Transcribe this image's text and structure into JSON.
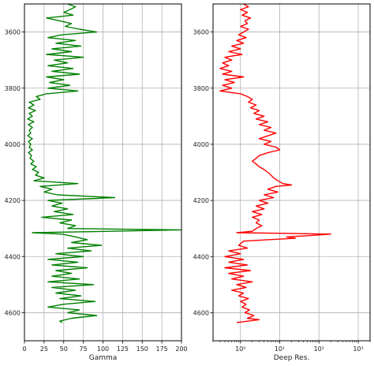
{
  "colors": {
    "gamma": "#008000",
    "deep_res": "#ff0000",
    "grid": "#b0b0b0",
    "axes": "#000000"
  },
  "chart_data": [
    {
      "type": "line",
      "orientation": "vertical-depth",
      "xlabel": "Gamma",
      "ylabel": "",
      "xlim": [
        0,
        200
      ],
      "ylim": [
        4700,
        3500
      ],
      "y_inverted": true,
      "grid": true,
      "xticks": [
        0,
        25,
        50,
        75,
        100,
        125,
        150,
        175,
        200
      ],
      "xtick_labels": [
        "0",
        "25",
        "50",
        "75",
        "100",
        "125",
        "150",
        "175",
        "200"
      ],
      "yticks": [
        3600,
        3800,
        4000,
        4200,
        4400,
        4600
      ],
      "ytick_labels": [
        "3600",
        "3800",
        "4000",
        "4200",
        "4400",
        "4600"
      ],
      "series": [
        {
          "color": "#008000",
          "points": [
            [
              3500,
              55
            ],
            [
              3510,
              65
            ],
            [
              3520,
              58
            ],
            [
              3530,
              50
            ],
            [
              3540,
              62
            ],
            [
              3550,
              28
            ],
            [
              3560,
              45
            ],
            [
              3570,
              60
            ],
            [
              3580,
              52
            ],
            [
              3590,
              70
            ],
            [
              3600,
              92
            ],
            [
              3610,
              48
            ],
            [
              3620,
              30
            ],
            [
              3630,
              65
            ],
            [
              3640,
              40
            ],
            [
              3650,
              72
            ],
            [
              3660,
              35
            ],
            [
              3670,
              60
            ],
            [
              3680,
              28
            ],
            [
              3690,
              75
            ],
            [
              3700,
              38
            ],
            [
              3710,
              55
            ],
            [
              3720,
              30
            ],
            [
              3730,
              62
            ],
            [
              3740,
              35
            ],
            [
              3750,
              70
            ],
            [
              3760,
              28
            ],
            [
              3770,
              50
            ],
            [
              3780,
              32
            ],
            [
              3790,
              58
            ],
            [
              3800,
              30
            ],
            [
              3810,
              68
            ],
            [
              3820,
              28
            ],
            [
              3830,
              15
            ],
            [
              3840,
              20
            ],
            [
              3850,
              6
            ],
            [
              3860,
              12
            ],
            [
              3870,
              5
            ],
            [
              3880,
              14
            ],
            [
              3890,
              6
            ],
            [
              3900,
              10
            ],
            [
              3910,
              4
            ],
            [
              3920,
              12
            ],
            [
              3930,
              5
            ],
            [
              3940,
              10
            ],
            [
              3950,
              6
            ],
            [
              3960,
              8
            ],
            [
              3970,
              4
            ],
            [
              3980,
              10
            ],
            [
              3990,
              5
            ],
            [
              4000,
              8
            ],
            [
              4010,
              6
            ],
            [
              4020,
              10
            ],
            [
              4030,
              5
            ],
            [
              4040,
              9
            ],
            [
              4050,
              7
            ],
            [
              4060,
              12
            ],
            [
              4070,
              8
            ],
            [
              4080,
              15
            ],
            [
              4090,
              10
            ],
            [
              4100,
              18
            ],
            [
              4110,
              14
            ],
            [
              4120,
              25
            ],
            [
              4130,
              12
            ],
            [
              4140,
              68
            ],
            [
              4150,
              20
            ],
            [
              4160,
              35
            ],
            [
              4170,
              25
            ],
            [
              4180,
              42
            ],
            [
              4190,
              115
            ],
            [
              4200,
              30
            ],
            [
              4210,
              48
            ],
            [
              4220,
              35
            ],
            [
              4230,
              55
            ],
            [
              4240,
              38
            ],
            [
              4250,
              62
            ],
            [
              4260,
              22
            ],
            [
              4270,
              60
            ],
            [
              4280,
              45
            ],
            [
              4290,
              65
            ],
            [
              4300,
              55
            ],
            [
              4305,
              200
            ],
            [
              4310,
              110
            ],
            [
              4315,
              10
            ],
            [
              4320,
              48
            ],
            [
              4330,
              65
            ],
            [
              4340,
              80
            ],
            [
              4350,
              60
            ],
            [
              4360,
              98
            ],
            [
              4370,
              55
            ],
            [
              4380,
              85
            ],
            [
              4390,
              40
            ],
            [
              4400,
              75
            ],
            [
              4410,
              30
            ],
            [
              4420,
              68
            ],
            [
              4430,
              35
            ],
            [
              4440,
              80
            ],
            [
              4450,
              40
            ],
            [
              4460,
              60
            ],
            [
              4470,
              35
            ],
            [
              4480,
              70
            ],
            [
              4490,
              30
            ],
            [
              4500,
              88
            ],
            [
              4510,
              35
            ],
            [
              4520,
              65
            ],
            [
              4530,
              40
            ],
            [
              4540,
              72
            ],
            [
              4550,
              45
            ],
            [
              4560,
              90
            ],
            [
              4570,
              50
            ],
            [
              4580,
              30
            ],
            [
              4590,
              70
            ],
            [
              4600,
              55
            ],
            [
              4610,
              92
            ],
            [
              4620,
              60
            ],
            [
              4630,
              45
            ],
            [
              4635,
              48
            ]
          ]
        }
      ]
    },
    {
      "type": "line",
      "orientation": "vertical-depth",
      "xlabel": "Deep Res.",
      "ylabel": "",
      "xlim": [
        0.2,
        2000
      ],
      "x_scale": "log",
      "ylim": [
        4700,
        3500
      ],
      "y_inverted": true,
      "grid": true,
      "xticks": [
        1,
        10,
        100,
        1000
      ],
      "xtick_labels": [
        "10⁰",
        "10¹",
        "10²",
        "10³"
      ],
      "yticks": [
        3600,
        3800,
        4000,
        4200,
        4400,
        4600
      ],
      "ytick_labels": [
        "3600",
        "3800",
        "4000",
        "4200",
        "4400",
        "4600"
      ],
      "series": [
        {
          "color": "#ff0000",
          "points": [
            [
              3500,
              1.2
            ],
            [
              3510,
              1.6
            ],
            [
              3520,
              1.0
            ],
            [
              3530,
              1.5
            ],
            [
              3540,
              1.1
            ],
            [
              3550,
              1.8
            ],
            [
              3560,
              1.3
            ],
            [
              3570,
              1.5
            ],
            [
              3580,
              1.0
            ],
            [
              3590,
              1.6
            ],
            [
              3600,
              1.2
            ],
            [
              3610,
              0.9
            ],
            [
              3620,
              1.4
            ],
            [
              3630,
              0.8
            ],
            [
              3640,
              1.2
            ],
            [
              3650,
              0.6
            ],
            [
              3660,
              1.0
            ],
            [
              3670,
              0.5
            ],
            [
              3680,
              1.1
            ],
            [
              3690,
              0.4
            ],
            [
              3700,
              0.6
            ],
            [
              3710,
              0.35
            ],
            [
              3720,
              0.5
            ],
            [
              3730,
              0.3
            ],
            [
              3740,
              0.6
            ],
            [
              3750,
              0.35
            ],
            [
              3760,
              1.2
            ],
            [
              3770,
              0.4
            ],
            [
              3780,
              0.7
            ],
            [
              3790,
              0.35
            ],
            [
              3800,
              0.6
            ],
            [
              3810,
              0.3
            ],
            [
              3820,
              1.0
            ],
            [
              3830,
              1.5
            ],
            [
              3840,
              2.0
            ],
            [
              3850,
              1.6
            ],
            [
              3860,
              2.5
            ],
            [
              3870,
              1.8
            ],
            [
              3880,
              3.0
            ],
            [
              3890,
              2.2
            ],
            [
              3900,
              4.0
            ],
            [
              3910,
              2.5
            ],
            [
              3920,
              5.0
            ],
            [
              3930,
              3.0
            ],
            [
              3940,
              6.0
            ],
            [
              3950,
              4.0
            ],
            [
              3960,
              8.0
            ],
            [
              3970,
              5.0
            ],
            [
              3980,
              3.0
            ],
            [
              3990,
              6.0
            ],
            [
              4000,
              4.0
            ],
            [
              4010,
              8.0
            ],
            [
              4020,
              10.0
            ],
            [
              4030,
              5.0
            ],
            [
              4040,
              3.0
            ],
            [
              4050,
              2.5
            ],
            [
              4060,
              2.0
            ],
            [
              4070,
              2.5
            ],
            [
              4080,
              3.0
            ],
            [
              4090,
              4.0
            ],
            [
              4100,
              5.0
            ],
            [
              4110,
              6.0
            ],
            [
              4120,
              7.0
            ],
            [
              4130,
              9.0
            ],
            [
              4140,
              12.0
            ],
            [
              4145,
              20.0
            ],
            [
              4150,
              8.0
            ],
            [
              4160,
              5.0
            ],
            [
              4170,
              9.0
            ],
            [
              4180,
              4.0
            ],
            [
              4190,
              7.0
            ],
            [
              4200,
              3.0
            ],
            [
              4210,
              5.0
            ],
            [
              4220,
              2.5
            ],
            [
              4230,
              4.0
            ],
            [
              4240,
              2.0
            ],
            [
              4250,
              3.5
            ],
            [
              4260,
              2.0
            ],
            [
              4270,
              3.0
            ],
            [
              4280,
              2.5
            ],
            [
              4290,
              3.5
            ],
            [
              4300,
              2.5
            ],
            [
              4310,
              2.0
            ],
            [
              4315,
              0.8
            ],
            [
              4318,
              30.0
            ],
            [
              4320,
              200.0
            ],
            [
              4325,
              60.0
            ],
            [
              4330,
              15.0
            ],
            [
              4335,
              25.0
            ],
            [
              4340,
              5.0
            ],
            [
              4345,
              1.2
            ],
            [
              4360,
              0.9
            ],
            [
              4370,
              1.5
            ],
            [
              4380,
              0.5
            ],
            [
              4390,
              1.0
            ],
            [
              4400,
              0.4
            ],
            [
              4410,
              1.2
            ],
            [
              4420,
              0.5
            ],
            [
              4430,
              1.5
            ],
            [
              4440,
              0.4
            ],
            [
              4450,
              1.8
            ],
            [
              4460,
              0.5
            ],
            [
              4470,
              1.2
            ],
            [
              4480,
              0.6
            ],
            [
              4490,
              2.0
            ],
            [
              4500,
              0.8
            ],
            [
              4510,
              1.4
            ],
            [
              4520,
              0.6
            ],
            [
              4530,
              1.2
            ],
            [
              4540,
              0.9
            ],
            [
              4550,
              1.6
            ],
            [
              4560,
              1.0
            ],
            [
              4570,
              1.4
            ],
            [
              4580,
              1.1
            ],
            [
              4590,
              1.7
            ],
            [
              4600,
              1.3
            ],
            [
              4610,
              2.2
            ],
            [
              4620,
              1.5
            ],
            [
              4625,
              3.0
            ],
            [
              4635,
              0.8
            ]
          ]
        }
      ]
    }
  ]
}
